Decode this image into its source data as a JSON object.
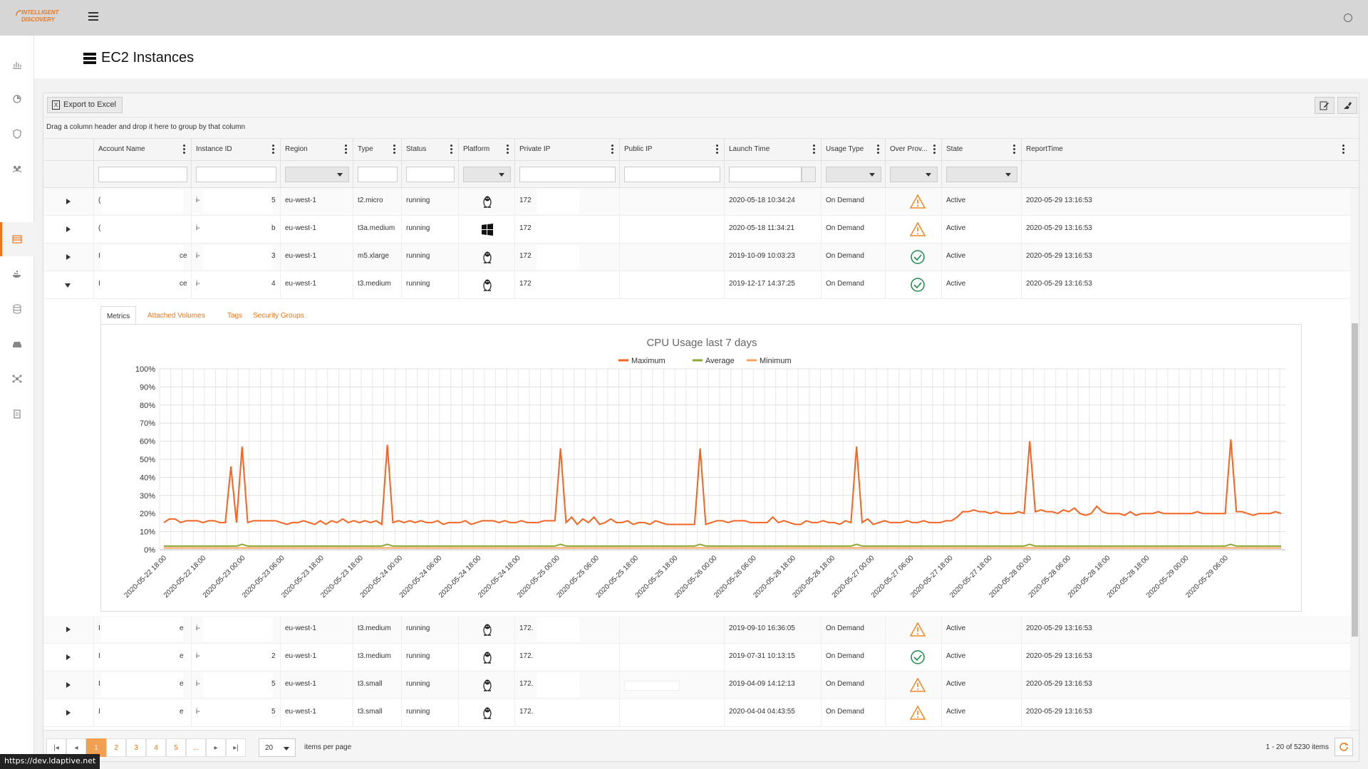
{
  "logo": {
    "line1": "INTELLIGENT",
    "line2": "DISCOVERY"
  },
  "page": {
    "title": "EC2 Instances"
  },
  "toolbar": {
    "export_label": "Export to Excel"
  },
  "group_hint": "Drag a column header and drop it here to group by that column",
  "columns": [
    "Account Name",
    "Instance ID",
    "Region",
    "Type",
    "Status",
    "Platform",
    "Private IP",
    "Public IP",
    "Launch Time",
    "Usage Type",
    "Over Prov...",
    "State",
    "ReportTime"
  ],
  "rows_top": [
    {
      "account": "(",
      "instance": "i-",
      "instance_tail": "5",
      "region": "eu-west-1",
      "type": "t2.micro",
      "status": "running",
      "platform": "linux",
      "private_ip": "172",
      "launch": "2020-05-18 10:34:24",
      "usage": "On Demand",
      "over_prov": "warning",
      "state": "Active",
      "report": "2020-05-29 13:16:53",
      "expanded": false
    },
    {
      "account": "(",
      "instance": "i-",
      "instance_tail": "b",
      "region": "eu-west-1",
      "type": "t3a.medium",
      "status": "running",
      "platform": "windows",
      "private_ip": "172",
      "launch": "2020-05-18 11:34:21",
      "usage": "On Demand",
      "over_prov": "warning",
      "state": "Active",
      "report": "2020-05-29 13:16:53",
      "expanded": false
    },
    {
      "account": "I",
      "account_tail": "ce",
      "instance": "i-",
      "instance_tail": "3",
      "region": "eu-west-1",
      "type": "m5.xlarge",
      "status": "running",
      "platform": "linux",
      "private_ip": "172",
      "launch": "2019-10-09 10:03:23",
      "usage": "On Demand",
      "over_prov": "ok",
      "state": "Active",
      "report": "2020-05-29 13:16:53",
      "expanded": false
    },
    {
      "account": "I",
      "account_tail": "ce",
      "instance": "i-",
      "instance_tail": "4",
      "region": "eu-west-1",
      "type": "t3.medium",
      "status": "running",
      "platform": "linux",
      "private_ip": "172",
      "launch": "2019-12-17 14:37:25",
      "usage": "On Demand",
      "over_prov": "ok",
      "state": "Active",
      "report": "2020-05-29 13:16:53",
      "expanded": true
    }
  ],
  "rows_bottom": [
    {
      "account": "I",
      "account_tail": "e",
      "instance": "i-",
      "instance_tail": "",
      "region": "eu-west-1",
      "type": "t3.medium",
      "status": "running",
      "platform": "linux",
      "private_ip": "172.",
      "launch": "2019-09-10 16:36:05",
      "usage": "On Demand",
      "over_prov": "warning",
      "state": "Active",
      "report": "2020-05-29 13:16:53"
    },
    {
      "account": "I",
      "account_tail": "e",
      "instance": "i-",
      "instance_tail": "2",
      "region": "eu-west-1",
      "type": "t3.medium",
      "status": "running",
      "platform": "linux",
      "private_ip": "172.",
      "launch": "2019-07-31 10:13:15",
      "usage": "On Demand",
      "over_prov": "ok",
      "state": "Active",
      "report": "2020-05-29 13:16:53"
    },
    {
      "account": "I",
      "account_tail": "e",
      "instance": "i-",
      "instance_tail": "5",
      "region": "eu-west-1",
      "type": "t3.small",
      "status": "running",
      "platform": "linux",
      "private_ip": "172.",
      "launch": "2019-04-09 14:12:13",
      "usage": "On Demand",
      "over_prov": "warning",
      "state": "Active",
      "report": "2020-05-29 13:16:53"
    },
    {
      "account": "I",
      "account_tail": "e",
      "instance": "i-",
      "instance_tail": "5",
      "region": "eu-west-1",
      "type": "t3.small",
      "status": "running",
      "platform": "linux",
      "private_ip": "172.",
      "launch": "2020-04-04 04:43:55",
      "usage": "On Demand",
      "over_prov": "warning",
      "state": "Active",
      "report": "2020-05-29 13:16:53"
    }
  ],
  "detail_tabs": [
    "Metrics",
    "Attached Volumes",
    "Tags",
    "Security Groups"
  ],
  "pager": {
    "pages": [
      "1",
      "2",
      "3",
      "4",
      "5",
      "..."
    ],
    "page_size": "20",
    "page_size_label": "items per page",
    "count": "1 - 20 of 5230 items"
  },
  "status_url": "https://dev.ldaptive.net",
  "colors": {
    "accent": "#e8781e",
    "max_series": "#f26522",
    "avg_series": "#8ba832",
    "min_series": "#f7a35c"
  },
  "chart_data": {
    "type": "line",
    "title": "CPU Usage last 7 days",
    "ylim": [
      0,
      100
    ],
    "yticks": [
      "0%",
      "10%",
      "20%",
      "30%",
      "40%",
      "50%",
      "60%",
      "70%",
      "80%",
      "90%",
      "100%"
    ],
    "xticks": [
      "2020-05-22 18:00",
      "2020-05-22 18:00",
      "2020-05-23 00:00",
      "2020-05-23 06:00",
      "2020-05-23 18:00",
      "2020-05-23 18:00",
      "2020-05-24 00:00",
      "2020-05-24 06:00",
      "2020-05-24 18:00",
      "2020-05-24 18:00",
      "2020-05-25 00:00",
      "2020-05-25 06:00",
      "2020-05-25 18:00",
      "2020-05-25 18:00",
      "2020-05-26 00:00",
      "2020-05-26 06:00",
      "2020-05-26 18:00",
      "2020-05-26 18:00",
      "2020-05-27 00:00",
      "2020-05-27 06:00",
      "2020-05-27 18:00",
      "2020-05-27 18:00",
      "2020-05-28 00:00",
      "2020-05-28 06:00",
      "2020-05-28 18:00",
      "2020-05-28 18:00",
      "2020-05-29 00:00",
      "2020-05-29 06:00"
    ],
    "grid": true,
    "legend_position": "top-center",
    "series": [
      {
        "name": "Maximum",
        "values": [
          15,
          17,
          17,
          15,
          16,
          16,
          16,
          15,
          16,
          16,
          15,
          15,
          46,
          15,
          57,
          15,
          16,
          16,
          16,
          16,
          16,
          15,
          14,
          15,
          15,
          16,
          15,
          14,
          16,
          14,
          16,
          15,
          17,
          15,
          16,
          15,
          16,
          15,
          16,
          14,
          58,
          15,
          16,
          15,
          16,
          15,
          16,
          15,
          15,
          16,
          14,
          15,
          15,
          15,
          16,
          14,
          15,
          16,
          16,
          16,
          15,
          16,
          15,
          15,
          16,
          15,
          15,
          15,
          16,
          16,
          16,
          56,
          15,
          18,
          14,
          17,
          15,
          18,
          14,
          15,
          17,
          15,
          15,
          16,
          14,
          15,
          15,
          14,
          16,
          15,
          14,
          14,
          14,
          14,
          14,
          14,
          56,
          14,
          15,
          16,
          16,
          15,
          16,
          16,
          16,
          15,
          15,
          15,
          15,
          18,
          15,
          16,
          15,
          14,
          14,
          16,
          15,
          15,
          16,
          15,
          15,
          14,
          16,
          15,
          57,
          15,
          17,
          14,
          15,
          16,
          15,
          15,
          15,
          16,
          15,
          15,
          16,
          15,
          15,
          15,
          16,
          16,
          18,
          21,
          21,
          22,
          21,
          21,
          20,
          21,
          20,
          20,
          20,
          21,
          20,
          60,
          21,
          22,
          21,
          21,
          20,
          22,
          21,
          23,
          20,
          19,
          20,
          24,
          21,
          20,
          20,
          20,
          19,
          21,
          19,
          20,
          20,
          20,
          21,
          20,
          20,
          20,
          20,
          20,
          20,
          21,
          20,
          20,
          20,
          20,
          20,
          61,
          21,
          21,
          20,
          19,
          20,
          20,
          20,
          21,
          20
        ],
        "name_color": "max_series"
      },
      {
        "name": "Average",
        "values": [
          2,
          2,
          2,
          2,
          2,
          2,
          2,
          2,
          2,
          2,
          2,
          2,
          2,
          2,
          3,
          2,
          2,
          2,
          2,
          2,
          2,
          2,
          2,
          2,
          2,
          2,
          2,
          2,
          2,
          2,
          2,
          2,
          2,
          2,
          2,
          2,
          2,
          2,
          2,
          2,
          3,
          2,
          2,
          2,
          2,
          2,
          2,
          2,
          2,
          2,
          2,
          2,
          2,
          2,
          2,
          2,
          2,
          2,
          2,
          2,
          2,
          2,
          2,
          2,
          2,
          2,
          2,
          2,
          2,
          2,
          2,
          3,
          2,
          2,
          2,
          2,
          2,
          2,
          2,
          2,
          2,
          2,
          2,
          2,
          2,
          2,
          2,
          2,
          2,
          2,
          2,
          2,
          2,
          2,
          2,
          2,
          3,
          2,
          2,
          2,
          2,
          2,
          2,
          2,
          2,
          2,
          2,
          2,
          2,
          2,
          2,
          2,
          2,
          2,
          2,
          2,
          2,
          2,
          2,
          2,
          2,
          2,
          2,
          2,
          3,
          2,
          2,
          2,
          2,
          2,
          2,
          2,
          2,
          2,
          2,
          2,
          2,
          2,
          2,
          2,
          2,
          2,
          2,
          2,
          2,
          2,
          2,
          2,
          2,
          2,
          2,
          2,
          2,
          2,
          2,
          3,
          2,
          2,
          2,
          2,
          2,
          2,
          2,
          2,
          2,
          2,
          2,
          2,
          2,
          2,
          2,
          2,
          2,
          2,
          2,
          2,
          2,
          2,
          2,
          2,
          2,
          2,
          2,
          2,
          2,
          2,
          2,
          2,
          2,
          2,
          2,
          3,
          2,
          2,
          2,
          2,
          2,
          2,
          2,
          2,
          2
        ],
        "name_color": "avg_series"
      },
      {
        "name": "Minimum",
        "values": [
          1,
          1,
          1,
          1,
          1,
          1,
          1,
          1,
          1,
          1,
          1,
          1,
          1,
          1,
          1,
          1,
          1,
          1,
          1,
          1,
          1,
          1,
          1,
          1,
          1,
          1,
          1,
          1,
          1,
          1,
          1,
          1,
          1,
          1,
          1,
          1,
          1,
          1,
          1,
          1,
          1,
          1,
          1,
          1,
          1,
          1,
          1,
          1,
          1,
          1,
          1,
          1,
          1,
          1,
          1,
          1,
          1,
          1,
          1,
          1,
          1,
          1,
          1,
          1,
          1,
          1,
          1,
          1,
          1,
          1,
          1,
          1,
          1,
          1,
          1,
          1,
          1,
          1,
          1,
          1,
          1,
          1,
          1,
          1,
          1,
          1,
          1,
          1,
          1,
          1,
          1,
          1,
          1,
          1,
          1,
          1,
          1,
          1,
          1,
          1,
          1,
          1,
          1,
          1,
          1,
          1,
          1,
          1,
          1,
          1,
          1,
          1,
          1,
          1,
          1,
          1,
          1,
          1,
          1,
          1,
          1,
          1,
          1,
          1,
          1,
          1,
          1,
          1,
          1,
          1,
          1,
          1,
          1,
          1,
          1,
          1,
          1,
          1,
          1,
          1,
          1,
          1,
          1,
          1,
          1,
          1,
          1,
          1,
          1,
          1,
          1,
          1,
          1,
          1,
          1,
          1,
          1,
          1,
          1,
          1,
          1,
          1,
          1,
          1,
          1,
          1,
          1,
          1,
          1,
          1,
          1,
          1,
          1,
          1,
          1,
          1,
          1,
          1,
          1,
          1,
          1,
          1,
          1,
          1,
          1,
          1,
          1,
          1,
          1,
          1,
          1,
          1,
          1,
          1,
          1,
          1,
          1,
          1,
          1,
          1,
          1
        ],
        "name_color": "min_series"
      }
    ]
  }
}
